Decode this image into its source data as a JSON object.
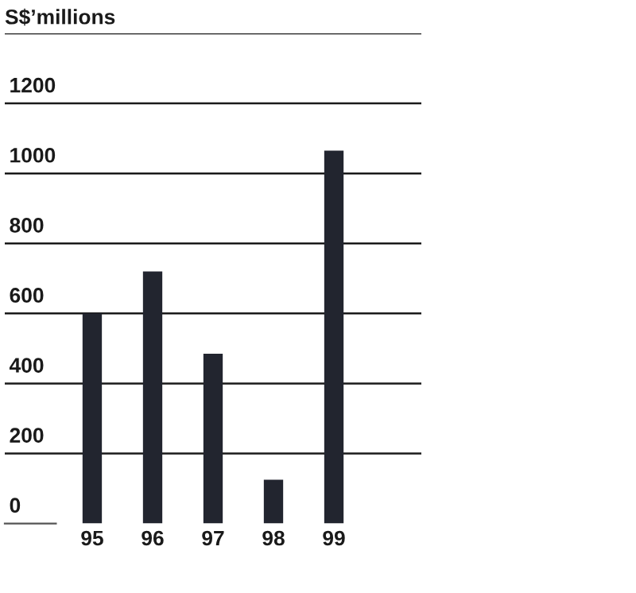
{
  "chart_data": {
    "type": "bar",
    "ylabel": "S$’millions",
    "categories": [
      "95",
      "96",
      "97",
      "98",
      "99"
    ],
    "values": [
      600,
      720,
      485,
      125,
      1065
    ],
    "color": "#22252f",
    "ylim": [
      0,
      1400
    ],
    "yticks": [
      0,
      200,
      400,
      600,
      800,
      1000,
      1200,
      {
        "value": 1400,
        "label": null
      }
    ],
    "grid": "y"
  }
}
